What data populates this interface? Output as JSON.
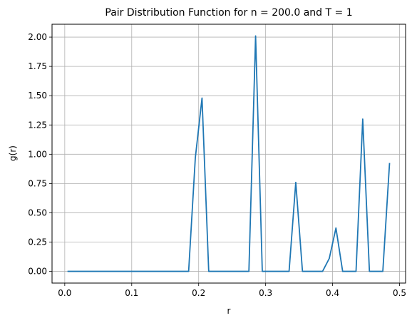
{
  "chart_data": {
    "type": "line",
    "title": "Pair Distribution Function for n = 200.0 and T = 1",
    "xlabel": "r",
    "ylabel": "g(r)",
    "xlim": [
      -0.019,
      0.509
    ],
    "ylim": [
      -0.1,
      2.11
    ],
    "xticks": [
      0.0,
      0.1,
      0.2,
      0.3,
      0.4,
      0.5
    ],
    "xtick_labels": [
      "0.0",
      "0.1",
      "0.2",
      "0.3",
      "0.4",
      "0.5"
    ],
    "yticks": [
      0.0,
      0.25,
      0.5,
      0.75,
      1.0,
      1.25,
      1.5,
      1.75,
      2.0
    ],
    "ytick_labels": [
      "0.00",
      "0.25",
      "0.50",
      "0.75",
      "1.00",
      "1.25",
      "1.50",
      "1.75",
      "2.00"
    ],
    "grid": true,
    "line_color": "#1f77b4",
    "series": [
      {
        "x": [
          0.005,
          0.015,
          0.025,
          0.035,
          0.045,
          0.055,
          0.065,
          0.075,
          0.085,
          0.095,
          0.105,
          0.115,
          0.125,
          0.135,
          0.145,
          0.155,
          0.165,
          0.175,
          0.185,
          0.195,
          0.205,
          0.215,
          0.225,
          0.235,
          0.245,
          0.255,
          0.265,
          0.275,
          0.285,
          0.295,
          0.305,
          0.315,
          0.325,
          0.335,
          0.345,
          0.355,
          0.365,
          0.375,
          0.385,
          0.395,
          0.405,
          0.415,
          0.425,
          0.435,
          0.445,
          0.455,
          0.465,
          0.475,
          0.485
        ],
        "values": [
          0,
          0,
          0,
          0,
          0,
          0,
          0,
          0,
          0,
          0,
          0,
          0,
          0,
          0,
          0,
          0,
          0,
          0,
          0,
          0.97,
          1.48,
          0,
          0,
          0,
          0,
          0,
          0,
          0,
          2.01,
          0,
          0,
          0,
          0,
          0,
          0.76,
          0,
          0,
          0,
          0,
          0.11,
          0.37,
          0,
          0,
          0,
          1.3,
          0,
          0,
          0,
          0.92
        ]
      }
    ]
  }
}
